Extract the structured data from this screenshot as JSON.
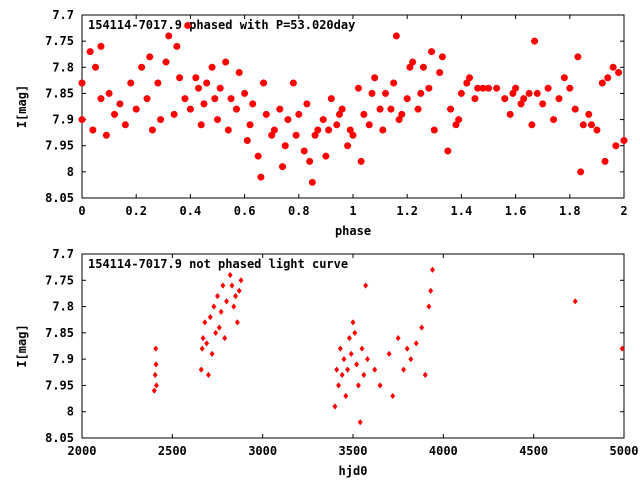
{
  "chart_data": [
    {
      "type": "scatter",
      "title": "154114-7017.9 phased with P=53.020day",
      "xlabel": "phase",
      "ylabel": "I[mag]",
      "xlim": [
        0,
        2
      ],
      "ylim": [
        8.05,
        7.7
      ],
      "y_inverted": true,
      "x_ticks": [
        "0",
        "0.2",
        "0.4",
        "0.6",
        "0.8",
        "1",
        "1.2",
        "1.4",
        "1.6",
        "1.8",
        "2"
      ],
      "y_ticks": [
        "7.7",
        "7.75",
        "7.8",
        "7.85",
        "7.9",
        "7.95",
        "8",
        "8.05"
      ],
      "marker": "filled-circle",
      "color": "#ff0000",
      "points": [
        [
          0.0,
          7.9
        ],
        [
          0.0,
          7.83
        ],
        [
          0.03,
          7.77
        ],
        [
          0.04,
          7.92
        ],
        [
          0.05,
          7.8
        ],
        [
          0.07,
          7.86
        ],
        [
          0.07,
          7.76
        ],
        [
          0.09,
          7.93
        ],
        [
          0.1,
          7.85
        ],
        [
          0.12,
          7.89
        ],
        [
          0.14,
          7.87
        ],
        [
          0.16,
          7.91
        ],
        [
          0.18,
          7.83
        ],
        [
          0.2,
          7.88
        ],
        [
          0.22,
          7.8
        ],
        [
          0.24,
          7.86
        ],
        [
          0.25,
          7.78
        ],
        [
          0.26,
          7.92
        ],
        [
          0.28,
          7.83
        ],
        [
          0.29,
          7.9
        ],
        [
          0.31,
          7.79
        ],
        [
          0.32,
          7.74
        ],
        [
          0.34,
          7.89
        ],
        [
          0.35,
          7.76
        ],
        [
          0.36,
          7.82
        ],
        [
          0.38,
          7.86
        ],
        [
          0.39,
          7.72
        ],
        [
          0.4,
          7.88
        ],
        [
          0.42,
          7.82
        ],
        [
          0.43,
          7.84
        ],
        [
          0.44,
          7.91
        ],
        [
          0.45,
          7.87
        ],
        [
          0.46,
          7.83
        ],
        [
          0.48,
          7.8
        ],
        [
          0.49,
          7.86
        ],
        [
          0.5,
          7.9
        ],
        [
          0.51,
          7.84
        ],
        [
          0.53,
          7.79
        ],
        [
          0.54,
          7.92
        ],
        [
          0.55,
          7.86
        ],
        [
          0.57,
          7.88
        ],
        [
          0.58,
          7.81
        ],
        [
          0.6,
          7.85
        ],
        [
          0.61,
          7.94
        ],
        [
          0.62,
          7.91
        ],
        [
          0.63,
          7.87
        ],
        [
          0.65,
          7.97
        ],
        [
          0.66,
          8.01
        ],
        [
          0.67,
          7.83
        ],
        [
          0.68,
          7.89
        ],
        [
          0.7,
          7.93
        ],
        [
          0.71,
          7.92
        ],
        [
          0.73,
          7.88
        ],
        [
          0.74,
          7.99
        ],
        [
          0.75,
          7.95
        ],
        [
          0.76,
          7.9
        ],
        [
          0.78,
          7.83
        ],
        [
          0.79,
          7.93
        ],
        [
          0.8,
          7.89
        ],
        [
          0.82,
          7.96
        ],
        [
          0.83,
          7.87
        ],
        [
          0.84,
          7.98
        ],
        [
          0.85,
          8.02
        ],
        [
          0.86,
          7.93
        ],
        [
          0.87,
          7.92
        ],
        [
          0.89,
          7.9
        ],
        [
          0.9,
          7.97
        ],
        [
          0.91,
          7.92
        ],
        [
          0.92,
          7.86
        ],
        [
          0.94,
          7.91
        ],
        [
          0.95,
          7.89
        ],
        [
          0.96,
          7.88
        ],
        [
          0.98,
          7.95
        ],
        [
          0.99,
          7.92
        ],
        [
          1.0,
          7.93
        ],
        [
          1.02,
          7.84
        ],
        [
          1.03,
          7.98
        ],
        [
          1.04,
          7.89
        ],
        [
          1.06,
          7.91
        ],
        [
          1.07,
          7.85
        ],
        [
          1.08,
          7.82
        ],
        [
          1.1,
          7.88
        ],
        [
          1.11,
          7.92
        ],
        [
          1.12,
          7.85
        ],
        [
          1.14,
          7.88
        ],
        [
          1.15,
          7.83
        ],
        [
          1.16,
          7.74
        ],
        [
          1.17,
          7.9
        ],
        [
          1.18,
          7.89
        ],
        [
          1.2,
          7.86
        ],
        [
          1.21,
          7.8
        ],
        [
          1.22,
          7.79
        ],
        [
          1.24,
          7.88
        ],
        [
          1.25,
          7.85
        ],
        [
          1.26,
          7.8
        ],
        [
          1.28,
          7.84
        ],
        [
          1.29,
          7.77
        ],
        [
          1.3,
          7.92
        ],
        [
          1.32,
          7.81
        ],
        [
          1.33,
          7.78
        ],
        [
          1.35,
          7.96
        ],
        [
          1.36,
          7.88
        ],
        [
          1.38,
          7.91
        ],
        [
          1.39,
          7.9
        ],
        [
          1.4,
          7.85
        ],
        [
          1.42,
          7.83
        ],
        [
          1.43,
          7.82
        ],
        [
          1.45,
          7.86
        ],
        [
          1.46,
          7.84
        ],
        [
          1.48,
          7.84
        ],
        [
          1.5,
          7.84
        ],
        [
          1.53,
          7.84
        ],
        [
          1.56,
          7.86
        ],
        [
          1.58,
          7.89
        ],
        [
          1.59,
          7.85
        ],
        [
          1.6,
          7.84
        ],
        [
          1.62,
          7.87
        ],
        [
          1.63,
          7.86
        ],
        [
          1.65,
          7.85
        ],
        [
          1.66,
          7.91
        ],
        [
          1.67,
          7.75
        ],
        [
          1.68,
          7.85
        ],
        [
          1.7,
          7.87
        ],
        [
          1.72,
          7.84
        ],
        [
          1.74,
          7.9
        ],
        [
          1.76,
          7.86
        ],
        [
          1.78,
          7.82
        ],
        [
          1.8,
          7.84
        ],
        [
          1.82,
          7.88
        ],
        [
          1.83,
          7.78
        ],
        [
          1.84,
          8.0
        ],
        [
          1.85,
          7.91
        ],
        [
          1.87,
          7.89
        ],
        [
          1.88,
          7.91
        ],
        [
          1.9,
          7.92
        ],
        [
          1.92,
          7.83
        ],
        [
          1.93,
          7.98
        ],
        [
          1.94,
          7.82
        ],
        [
          1.96,
          7.8
        ],
        [
          1.97,
          7.95
        ],
        [
          1.98,
          7.81
        ],
        [
          2.0,
          7.94
        ]
      ]
    },
    {
      "type": "scatter",
      "title": "154114-7017.9 not phased light curve",
      "xlabel": "hjd0",
      "ylabel": "I[mag]",
      "xlim": [
        2000,
        5000
      ],
      "ylim": [
        8.05,
        7.7
      ],
      "y_inverted": true,
      "x_ticks": [
        "2000",
        "2500",
        "3000",
        "3500",
        "4000",
        "4500",
        "5000"
      ],
      "y_ticks": [
        "7.7",
        "7.75",
        "7.8",
        "7.85",
        "7.9",
        "7.95",
        "8",
        "8.05"
      ],
      "marker": "small-diamond",
      "color": "#ff0000",
      "points": [
        [
          2400,
          7.96
        ],
        [
          2405,
          7.93
        ],
        [
          2408,
          7.88
        ],
        [
          2410,
          7.91
        ],
        [
          2412,
          7.95
        ],
        [
          2660,
          7.92
        ],
        [
          2665,
          7.88
        ],
        [
          2670,
          7.86
        ],
        [
          2680,
          7.83
        ],
        [
          2690,
          7.87
        ],
        [
          2700,
          7.93
        ],
        [
          2710,
          7.82
        ],
        [
          2720,
          7.89
        ],
        [
          2730,
          7.8
        ],
        [
          2740,
          7.85
        ],
        [
          2750,
          7.78
        ],
        [
          2760,
          7.84
        ],
        [
          2770,
          7.81
        ],
        [
          2780,
          7.76
        ],
        [
          2790,
          7.86
        ],
        [
          2800,
          7.79
        ],
        [
          2820,
          7.74
        ],
        [
          2830,
          7.76
        ],
        [
          2840,
          7.8
        ],
        [
          2850,
          7.78
        ],
        [
          2860,
          7.83
        ],
        [
          2870,
          7.77
        ],
        [
          2880,
          7.75
        ],
        [
          3400,
          7.99
        ],
        [
          3410,
          7.92
        ],
        [
          3420,
          7.95
        ],
        [
          3430,
          7.88
        ],
        [
          3440,
          7.93
        ],
        [
          3450,
          7.9
        ],
        [
          3460,
          7.97
        ],
        [
          3470,
          7.92
        ],
        [
          3480,
          7.86
        ],
        [
          3490,
          7.89
        ],
        [
          3500,
          7.83
        ],
        [
          3510,
          7.85
        ],
        [
          3520,
          7.91
        ],
        [
          3530,
          7.95
        ],
        [
          3540,
          8.02
        ],
        [
          3550,
          7.88
        ],
        [
          3560,
          7.93
        ],
        [
          3570,
          7.76
        ],
        [
          3580,
          7.9
        ],
        [
          3620,
          7.92
        ],
        [
          3650,
          7.95
        ],
        [
          3700,
          7.89
        ],
        [
          3720,
          7.97
        ],
        [
          3750,
          7.86
        ],
        [
          3780,
          7.92
        ],
        [
          3800,
          7.88
        ],
        [
          3820,
          7.9
        ],
        [
          3850,
          7.87
        ],
        [
          3880,
          7.84
        ],
        [
          3900,
          7.93
        ],
        [
          3920,
          7.8
        ],
        [
          3930,
          7.77
        ],
        [
          3940,
          7.73
        ],
        [
          4730,
          7.79
        ],
        [
          4990,
          7.88
        ]
      ]
    }
  ]
}
